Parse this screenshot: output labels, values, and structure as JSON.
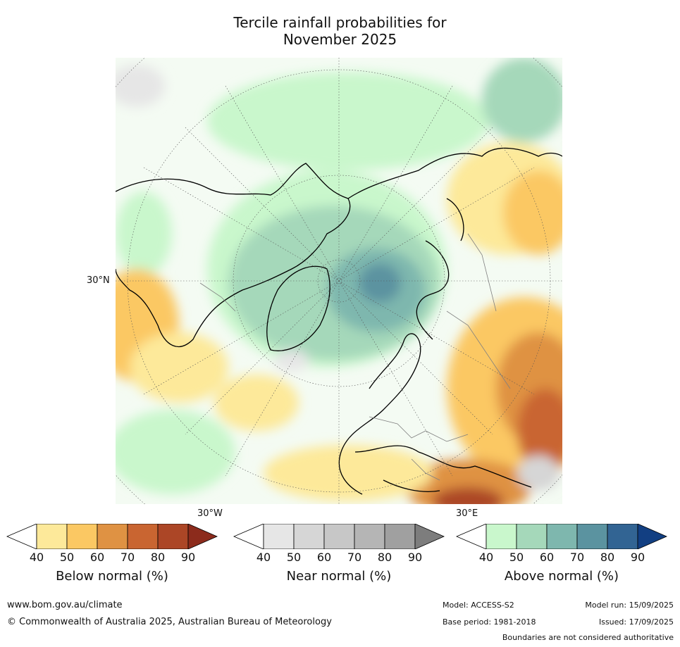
{
  "title": {
    "line1": "Tercile rainfall probabilities for",
    "line2": "November 2025"
  },
  "map": {
    "latitude_label": "30°N",
    "longitude_labels": {
      "west": "30°W",
      "east": "30°E"
    },
    "background_color": "#ffffff"
  },
  "legends": [
    {
      "title": "Below normal (%)",
      "ticks": [
        "40",
        "50",
        "60",
        "70",
        "80",
        "90"
      ],
      "colors": [
        "#ffffff",
        "#fde99a",
        "#fbc863",
        "#df9243",
        "#c96531",
        "#ac4626",
        "#8c2b1c"
      ]
    },
    {
      "title": "Near normal (%)",
      "ticks": [
        "40",
        "50",
        "60",
        "70",
        "80",
        "90"
      ],
      "colors": [
        "#ffffff",
        "#e6e6e6",
        "#d6d6d6",
        "#c7c7c7",
        "#b5b5b5",
        "#a0a0a0",
        "#7d7d7d"
      ]
    },
    {
      "title": "Above normal (%)",
      "ticks": [
        "40",
        "50",
        "60",
        "70",
        "80",
        "90"
      ],
      "colors": [
        "#ffffff",
        "#c9f7cc",
        "#a5d8ba",
        "#7eb7ae",
        "#5b93a0",
        "#326493",
        "#123f82"
      ]
    }
  ],
  "footer": {
    "website": "www.bom.gov.au/climate",
    "copyright": "© Commonwealth of Australia 2025, Australian Bureau of Meteorology",
    "model": "Model: ACCESS-S2",
    "base_period": "Base period: 1981-2018",
    "model_run": "Model run: 15/09/2025",
    "issued": "Issued: 17/09/2025",
    "disclaimer": "Boundaries are not considered authoritative"
  }
}
